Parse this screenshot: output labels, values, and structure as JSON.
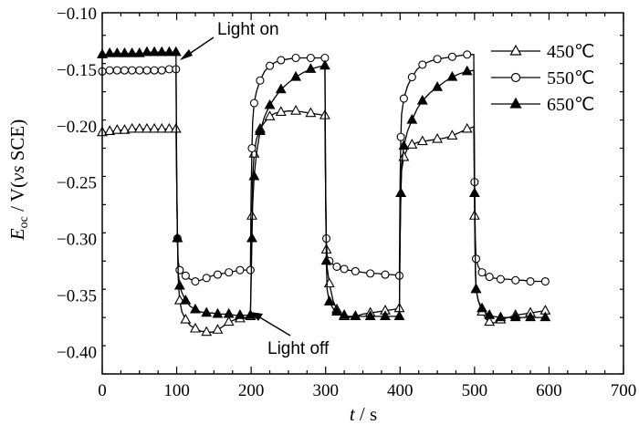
{
  "chart_data": {
    "type": "line",
    "xlabel_var": "t",
    "xlabel_unit": " / s",
    "ylabel_var": "E",
    "ylabel_sub": "oc",
    "ylabel_pre": " / V(",
    "ylabel_vs": "vs",
    "ylabel_post": " SCE)",
    "xlim": [
      0,
      700
    ],
    "ylim": [
      -0.42,
      -0.1
    ],
    "xticks": [
      0,
      100,
      200,
      300,
      400,
      500,
      600,
      700
    ],
    "yticks": [
      -0.4,
      -0.35,
      -0.3,
      -0.25,
      -0.2,
      -0.15,
      -0.1
    ],
    "ytick_labels": [
      "−0.40",
      "−0.35",
      "−0.30",
      "−0.25",
      "−0.20",
      "−0.15",
      "−0.10"
    ],
    "grid": false,
    "legend_position": "top-right",
    "annotations": [
      {
        "text": "Light on",
        "point": [
          100,
          -0.142
        ]
      },
      {
        "text": "Light off",
        "point": [
          200,
          -0.368
        ]
      }
    ],
    "series": [
      {
        "name": "450℃",
        "marker": "open-triangle",
        "points": [
          [
            0,
            -0.206
          ],
          [
            5,
            -0.206
          ],
          [
            10,
            -0.205
          ],
          [
            15,
            -0.205
          ],
          [
            20,
            -0.204
          ],
          [
            25,
            -0.204
          ],
          [
            30,
            -0.204
          ],
          [
            35,
            -0.204
          ],
          [
            40,
            -0.203
          ],
          [
            45,
            -0.203
          ],
          [
            50,
            -0.203
          ],
          [
            55,
            -0.203
          ],
          [
            60,
            -0.203
          ],
          [
            65,
            -0.203
          ],
          [
            70,
            -0.203
          ],
          [
            75,
            -0.203
          ],
          [
            80,
            -0.203
          ],
          [
            85,
            -0.203
          ],
          [
            90,
            -0.203
          ],
          [
            95,
            -0.203
          ],
          [
            99,
            -0.203
          ],
          [
            100,
            -0.25
          ],
          [
            101,
            -0.3
          ],
          [
            102,
            -0.335
          ],
          [
            104,
            -0.355
          ],
          [
            107,
            -0.365
          ],
          [
            112,
            -0.372
          ],
          [
            118,
            -0.377
          ],
          [
            125,
            -0.38
          ],
          [
            132,
            -0.382
          ],
          [
            140,
            -0.383
          ],
          [
            148,
            -0.383
          ],
          [
            155,
            -0.381
          ],
          [
            162,
            -0.378
          ],
          [
            170,
            -0.374
          ],
          [
            178,
            -0.372
          ],
          [
            185,
            -0.371
          ],
          [
            192,
            -0.37
          ],
          [
            199,
            -0.369
          ],
          [
            200,
            -0.33
          ],
          [
            201,
            -0.28
          ],
          [
            202,
            -0.245
          ],
          [
            204,
            -0.225
          ],
          [
            207,
            -0.212
          ],
          [
            212,
            -0.203
          ],
          [
            218,
            -0.197
          ],
          [
            225,
            -0.192
          ],
          [
            232,
            -0.189
          ],
          [
            240,
            -0.188
          ],
          [
            250,
            -0.187
          ],
          [
            260,
            -0.187
          ],
          [
            270,
            -0.188
          ],
          [
            280,
            -0.189
          ],
          [
            290,
            -0.19
          ],
          [
            299,
            -0.191
          ],
          [
            300,
            -0.26
          ],
          [
            301,
            -0.31
          ],
          [
            302,
            -0.325
          ],
          [
            305,
            -0.34
          ],
          [
            310,
            -0.355
          ],
          [
            315,
            -0.363
          ],
          [
            320,
            -0.367
          ],
          [
            325,
            -0.369
          ],
          [
            330,
            -0.37
          ],
          [
            340,
            -0.369
          ],
          [
            350,
            -0.367
          ],
          [
            360,
            -0.366
          ],
          [
            370,
            -0.365
          ],
          [
            380,
            -0.364
          ],
          [
            390,
            -0.363
          ],
          [
            399,
            -0.362
          ],
          [
            400,
            -0.3
          ],
          [
            401,
            -0.26
          ],
          [
            402,
            -0.24
          ],
          [
            405,
            -0.228
          ],
          [
            410,
            -0.22
          ],
          [
            416,
            -0.217
          ],
          [
            423,
            -0.215
          ],
          [
            430,
            -0.214
          ],
          [
            440,
            -0.213
          ],
          [
            450,
            -0.212
          ],
          [
            460,
            -0.211
          ],
          [
            470,
            -0.209
          ],
          [
            480,
            -0.206
          ],
          [
            490,
            -0.203
          ],
          [
            499,
            -0.201
          ],
          [
            500,
            -0.28
          ],
          [
            501,
            -0.33
          ],
          [
            502,
            -0.345
          ],
          [
            505,
            -0.355
          ],
          [
            510,
            -0.365
          ],
          [
            515,
            -0.371
          ],
          [
            520,
            -0.374
          ],
          [
            525,
            -0.375
          ],
          [
            535,
            -0.372
          ],
          [
            545,
            -0.37
          ],
          [
            555,
            -0.368
          ],
          [
            565,
            -0.367
          ],
          [
            575,
            -0.366
          ],
          [
            585,
            -0.365
          ],
          [
            595,
            -0.364
          ]
        ]
      },
      {
        "name": "550℃",
        "marker": "open-circle",
        "points": [
          [
            0,
            -0.152
          ],
          [
            5,
            -0.151
          ],
          [
            10,
            -0.151
          ],
          [
            15,
            -0.151
          ],
          [
            20,
            -0.151
          ],
          [
            25,
            -0.151
          ],
          [
            30,
            -0.151
          ],
          [
            35,
            -0.151
          ],
          [
            40,
            -0.151
          ],
          [
            45,
            -0.151
          ],
          [
            50,
            -0.151
          ],
          [
            55,
            -0.151
          ],
          [
            60,
            -0.151
          ],
          [
            65,
            -0.151
          ],
          [
            70,
            -0.151
          ],
          [
            75,
            -0.151
          ],
          [
            80,
            -0.151
          ],
          [
            85,
            -0.15
          ],
          [
            90,
            -0.15
          ],
          [
            95,
            -0.15
          ],
          [
            99,
            -0.15
          ],
          [
            100,
            -0.25
          ],
          [
            101,
            -0.3
          ],
          [
            102,
            -0.32
          ],
          [
            104,
            -0.328
          ],
          [
            107,
            -0.33
          ],
          [
            112,
            -0.333
          ],
          [
            118,
            -0.336
          ],
          [
            125,
            -0.338
          ],
          [
            132,
            -0.337
          ],
          [
            140,
            -0.335
          ],
          [
            148,
            -0.333
          ],
          [
            155,
            -0.332
          ],
          [
            162,
            -0.331
          ],
          [
            170,
            -0.33
          ],
          [
            178,
            -0.329
          ],
          [
            185,
            -0.328
          ],
          [
            192,
            -0.328
          ],
          [
            199,
            -0.328
          ],
          [
            200,
            -0.26
          ],
          [
            201,
            -0.22
          ],
          [
            202,
            -0.196
          ],
          [
            204,
            -0.18
          ],
          [
            207,
            -0.17
          ],
          [
            212,
            -0.16
          ],
          [
            218,
            -0.152
          ],
          [
            225,
            -0.147
          ],
          [
            232,
            -0.144
          ],
          [
            240,
            -0.142
          ],
          [
            250,
            -0.141
          ],
          [
            260,
            -0.14
          ],
          [
            270,
            -0.14
          ],
          [
            280,
            -0.14
          ],
          [
            290,
            -0.14
          ],
          [
            299,
            -0.14
          ],
          [
            300,
            -0.25
          ],
          [
            301,
            -0.3
          ],
          [
            302,
            -0.315
          ],
          [
            305,
            -0.32
          ],
          [
            310,
            -0.323
          ],
          [
            315,
            -0.325
          ],
          [
            320,
            -0.326
          ],
          [
            325,
            -0.327
          ],
          [
            330,
            -0.328
          ],
          [
            340,
            -0.329
          ],
          [
            350,
            -0.33
          ],
          [
            360,
            -0.331
          ],
          [
            370,
            -0.331
          ],
          [
            380,
            -0.332
          ],
          [
            390,
            -0.332
          ],
          [
            399,
            -0.333
          ],
          [
            400,
            -0.25
          ],
          [
            401,
            -0.21
          ],
          [
            402,
            -0.19
          ],
          [
            405,
            -0.176
          ],
          [
            410,
            -0.165
          ],
          [
            416,
            -0.157
          ],
          [
            423,
            -0.15
          ],
          [
            430,
            -0.146
          ],
          [
            440,
            -0.143
          ],
          [
            450,
            -0.141
          ],
          [
            460,
            -0.14
          ],
          [
            470,
            -0.139
          ],
          [
            480,
            -0.138
          ],
          [
            490,
            -0.137
          ],
          [
            499,
            -0.137
          ],
          [
            500,
            -0.25
          ],
          [
            501,
            -0.3
          ],
          [
            502,
            -0.318
          ],
          [
            505,
            -0.325
          ],
          [
            510,
            -0.33
          ],
          [
            515,
            -0.333
          ],
          [
            520,
            -0.334
          ],
          [
            525,
            -0.335
          ],
          [
            535,
            -0.336
          ],
          [
            545,
            -0.336
          ],
          [
            555,
            -0.337
          ],
          [
            565,
            -0.337
          ],
          [
            575,
            -0.338
          ],
          [
            585,
            -0.338
          ],
          [
            595,
            -0.338
          ]
        ]
      },
      {
        "name": "650℃",
        "marker": "filled-triangle",
        "points": [
          [
            0,
            -0.137
          ],
          [
            5,
            -0.137
          ],
          [
            10,
            -0.136
          ],
          [
            15,
            -0.136
          ],
          [
            20,
            -0.136
          ],
          [
            25,
            -0.136
          ],
          [
            30,
            -0.136
          ],
          [
            35,
            -0.136
          ],
          [
            40,
            -0.136
          ],
          [
            45,
            -0.136
          ],
          [
            50,
            -0.136
          ],
          [
            55,
            -0.136
          ],
          [
            60,
            -0.135
          ],
          [
            65,
            -0.135
          ],
          [
            70,
            -0.135
          ],
          [
            75,
            -0.135
          ],
          [
            80,
            -0.135
          ],
          [
            85,
            -0.135
          ],
          [
            90,
            -0.135
          ],
          [
            95,
            -0.135
          ],
          [
            99,
            -0.135
          ],
          [
            100,
            -0.25
          ],
          [
            101,
            -0.3
          ],
          [
            102,
            -0.33
          ],
          [
            104,
            -0.342
          ],
          [
            107,
            -0.348
          ],
          [
            112,
            -0.355
          ],
          [
            118,
            -0.36
          ],
          [
            125,
            -0.363
          ],
          [
            132,
            -0.365
          ],
          [
            140,
            -0.366
          ],
          [
            148,
            -0.366
          ],
          [
            155,
            -0.367
          ],
          [
            162,
            -0.367
          ],
          [
            170,
            -0.367
          ],
          [
            178,
            -0.368
          ],
          [
            185,
            -0.368
          ],
          [
            192,
            -0.368
          ],
          [
            199,
            -0.368
          ],
          [
            200,
            -0.34
          ],
          [
            201,
            -0.3
          ],
          [
            202,
            -0.27
          ],
          [
            204,
            -0.245
          ],
          [
            207,
            -0.225
          ],
          [
            212,
            -0.205
          ],
          [
            218,
            -0.192
          ],
          [
            225,
            -0.182
          ],
          [
            232,
            -0.175
          ],
          [
            240,
            -0.168
          ],
          [
            250,
            -0.162
          ],
          [
            260,
            -0.157
          ],
          [
            270,
            -0.153
          ],
          [
            280,
            -0.15
          ],
          [
            290,
            -0.148
          ],
          [
            299,
            -0.147
          ],
          [
            300,
            -0.26
          ],
          [
            301,
            -0.32
          ],
          [
            302,
            -0.345
          ],
          [
            305,
            -0.356
          ],
          [
            310,
            -0.362
          ],
          [
            315,
            -0.365
          ],
          [
            320,
            -0.367
          ],
          [
            325,
            -0.368
          ],
          [
            330,
            -0.369
          ],
          [
            340,
            -0.369
          ],
          [
            350,
            -0.369
          ],
          [
            360,
            -0.369
          ],
          [
            370,
            -0.369
          ],
          [
            380,
            -0.369
          ],
          [
            390,
            -0.369
          ],
          [
            399,
            -0.369
          ],
          [
            400,
            -0.3
          ],
          [
            401,
            -0.26
          ],
          [
            402,
            -0.235
          ],
          [
            405,
            -0.218
          ],
          [
            410,
            -0.205
          ],
          [
            416,
            -0.195
          ],
          [
            423,
            -0.185
          ],
          [
            430,
            -0.178
          ],
          [
            440,
            -0.171
          ],
          [
            450,
            -0.166
          ],
          [
            460,
            -0.161
          ],
          [
            470,
            -0.157
          ],
          [
            480,
            -0.154
          ],
          [
            490,
            -0.152
          ],
          [
            499,
            -0.151
          ],
          [
            500,
            -0.26
          ],
          [
            501,
            -0.32
          ],
          [
            502,
            -0.345
          ],
          [
            505,
            -0.355
          ],
          [
            510,
            -0.362
          ],
          [
            515,
            -0.366
          ],
          [
            520,
            -0.368
          ],
          [
            525,
            -0.369
          ],
          [
            535,
            -0.37
          ],
          [
            545,
            -0.37
          ],
          [
            555,
            -0.37
          ],
          [
            565,
            -0.37
          ],
          [
            575,
            -0.37
          ],
          [
            585,
            -0.37
          ],
          [
            595,
            -0.37
          ]
        ]
      }
    ]
  }
}
